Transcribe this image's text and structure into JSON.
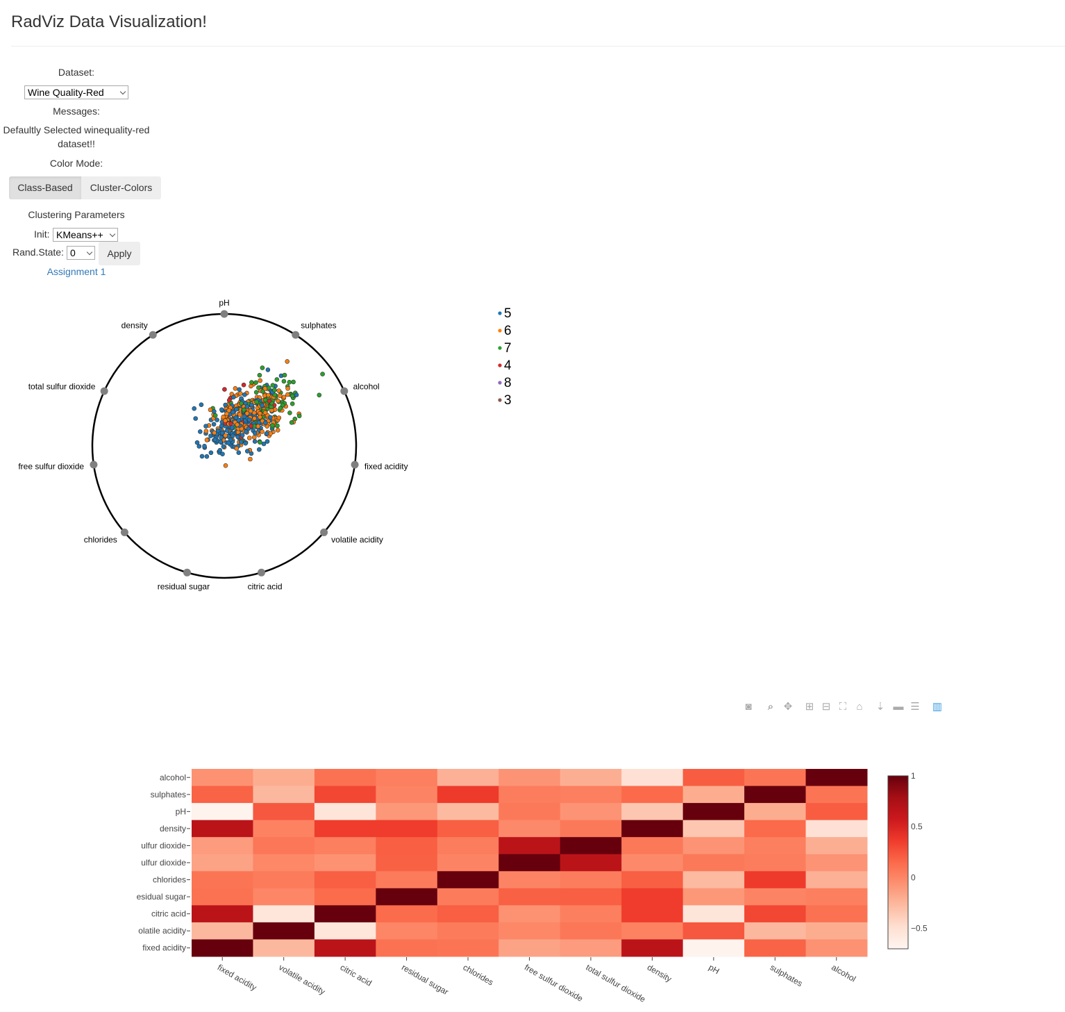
{
  "header": {
    "title": "RadViz Data Visualization!"
  },
  "controls": {
    "dataset_label": "Dataset:",
    "dataset_value": "Wine Quality-Red",
    "messages_label": "Messages:",
    "message_line1": "Defaultly Selected winequality-red",
    "message_line2": "dataset!!",
    "color_mode_label": "Color Mode:",
    "class_based": "Class-Based",
    "cluster_colors": "Cluster-Colors",
    "clustering_label": "Clustering Parameters",
    "init_label": "Init:",
    "init_value": "KMeans++",
    "rand_label": "Rand.State:",
    "rand_value": "0",
    "apply": "Apply",
    "link": "Assignment 1"
  },
  "radviz": {
    "anchors": [
      "pH",
      "sulphates",
      "alcohol",
      "fixed acidity",
      "volatile acidity",
      "citric acid",
      "residual sugar",
      "chlorides",
      "free sulfur dioxide",
      "total sulfur dioxide",
      "density"
    ],
    "legend": [
      {
        "label": "5",
        "color": "#1f77b4"
      },
      {
        "label": "6",
        "color": "#ff7f0e"
      },
      {
        "label": "7",
        "color": "#2ca02c"
      },
      {
        "label": "4",
        "color": "#d62728"
      },
      {
        "label": "8",
        "color": "#9467bd"
      },
      {
        "label": "3",
        "color": "#8c564b"
      }
    ]
  },
  "toolbar": {
    "icons": [
      "camera-icon",
      "zoom-icon",
      "pan-icon",
      "zoom-in-icon",
      "zoom-out-icon",
      "autoscale-icon",
      "reset-axes-icon",
      "spike-lines-icon",
      "hover-closest-icon",
      "hover-compare-icon",
      "plotly-logo-icon"
    ]
  },
  "chart_data": {
    "type": "heatmap",
    "x": [
      "fixed acidity",
      "volatile acidity",
      "citric acid",
      "residual sugar",
      "chlorides",
      "free sulfur dioxide",
      "total sulfur dioxide",
      "density",
      "pH",
      "sulphates",
      "alcohol"
    ],
    "y_visible_labels": [
      "alcohol",
      "sulphates",
      "pH",
      "density",
      "ulfur dioxide",
      "ulfur dioxide",
      "chlorides",
      "esidual sugar",
      "citric acid",
      "olatile acidity",
      "fixed acidity"
    ],
    "y": [
      "alcohol",
      "sulphates",
      "pH",
      "density",
      "total sulfur dioxide",
      "free sulfur dioxide",
      "chlorides",
      "residual sugar",
      "citric acid",
      "volatile acidity",
      "fixed acidity"
    ],
    "z": [
      [
        -0.06,
        -0.2,
        0.11,
        0.04,
        -0.22,
        -0.07,
        -0.21,
        -0.5,
        0.21,
        0.09,
        1
      ],
      [
        0.18,
        -0.26,
        0.31,
        0.01,
        0.37,
        0.05,
        0.04,
        0.15,
        -0.2,
        1,
        0.09
      ],
      [
        -0.68,
        0.23,
        -0.54,
        -0.09,
        -0.27,
        0.07,
        -0.07,
        -0.34,
        1,
        -0.2,
        0.21
      ],
      [
        0.67,
        0.02,
        0.36,
        0.36,
        0.2,
        -0.02,
        0.07,
        1,
        -0.34,
        0.15,
        -0.5
      ],
      [
        -0.11,
        0.08,
        0.04,
        0.2,
        0.05,
        0.67,
        1,
        0.07,
        -0.07,
        0.04,
        -0.21
      ],
      [
        -0.15,
        -0.01,
        -0.06,
        0.19,
        0.01,
        1,
        0.67,
        -0.02,
        0.07,
        0.05,
        -0.07
      ],
      [
        0.09,
        0.06,
        0.2,
        0.06,
        1,
        0.01,
        0.05,
        0.2,
        -0.27,
        0.37,
        -0.22
      ],
      [
        0.11,
        0.0,
        0.14,
        1,
        0.06,
        0.19,
        0.2,
        0.36,
        -0.09,
        0.01,
        0.04
      ],
      [
        0.67,
        -0.55,
        1,
        0.14,
        0.2,
        -0.06,
        0.04,
        0.36,
        -0.54,
        0.31,
        0.11
      ],
      [
        -0.26,
        1,
        -0.55,
        0.0,
        0.06,
        -0.01,
        0.08,
        0.02,
        0.23,
        -0.26,
        -0.2
      ],
      [
        1,
        -0.26,
        0.67,
        0.11,
        0.09,
        -0.15,
        -0.11,
        0.67,
        -0.68,
        0.18,
        -0.06
      ]
    ],
    "colorbar_ticks": [
      "1",
      "0.5",
      "0",
      "−0.5"
    ],
    "zrange": [
      -0.7,
      1
    ]
  }
}
